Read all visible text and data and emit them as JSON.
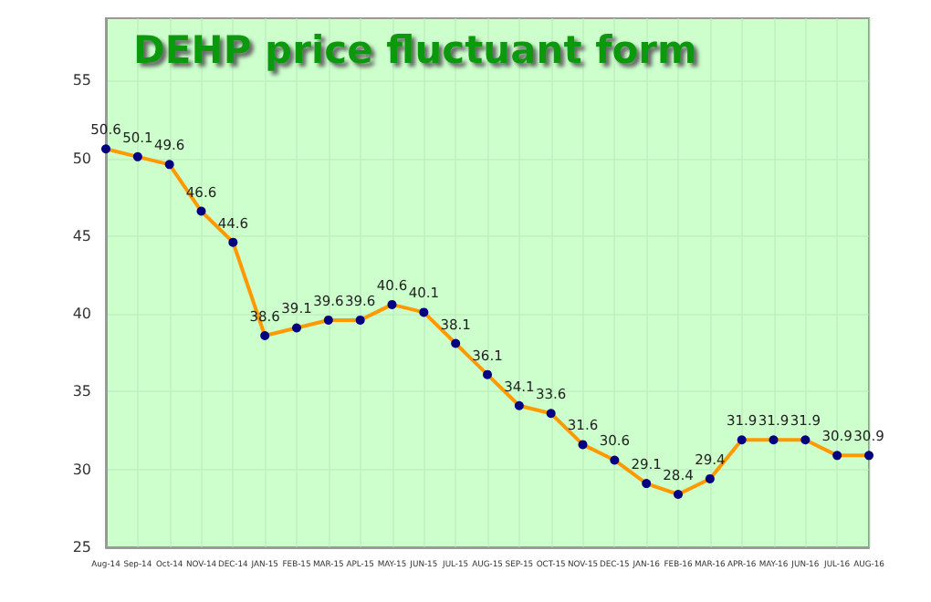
{
  "chart_data": {
    "type": "line",
    "title": "DEHP price fluctuant form",
    "categories": [
      "Aug-14",
      "Sep-14",
      "Oct-14",
      "NOV-14",
      "DEC-14",
      "JAN-15",
      "FEB-15",
      "MAR-15",
      "APL-15",
      "MAY-15",
      "JUN-15",
      "JUL-15",
      "AUG-15",
      "SEP-15",
      "OCT-15",
      "NOV-15",
      "DEC-15",
      "JAN-16",
      "FEB-16",
      "MAR-16",
      "APR-16",
      "MAY-16",
      "JUN-16",
      "JUL-16",
      "AUG-16"
    ],
    "series": [
      {
        "color": "#ff9900",
        "values": [
          50.6,
          50.1,
          49.6,
          46.6,
          44.6,
          38.6,
          39.1,
          39.6,
          39.6,
          40.6,
          40.1,
          38.1,
          36.1,
          34.1,
          33.6,
          31.6,
          30.6,
          29.1,
          28.4,
          29.4,
          31.9,
          31.9,
          31.9,
          30.9,
          30.9
        ]
      }
    ],
    "ylim": [
      25,
      59
    ],
    "yticks": [
      25,
      30,
      35,
      40,
      45,
      50,
      55
    ],
    "grid": true,
    "marker": "circle",
    "line_style": "solid",
    "data_labels": true
  }
}
